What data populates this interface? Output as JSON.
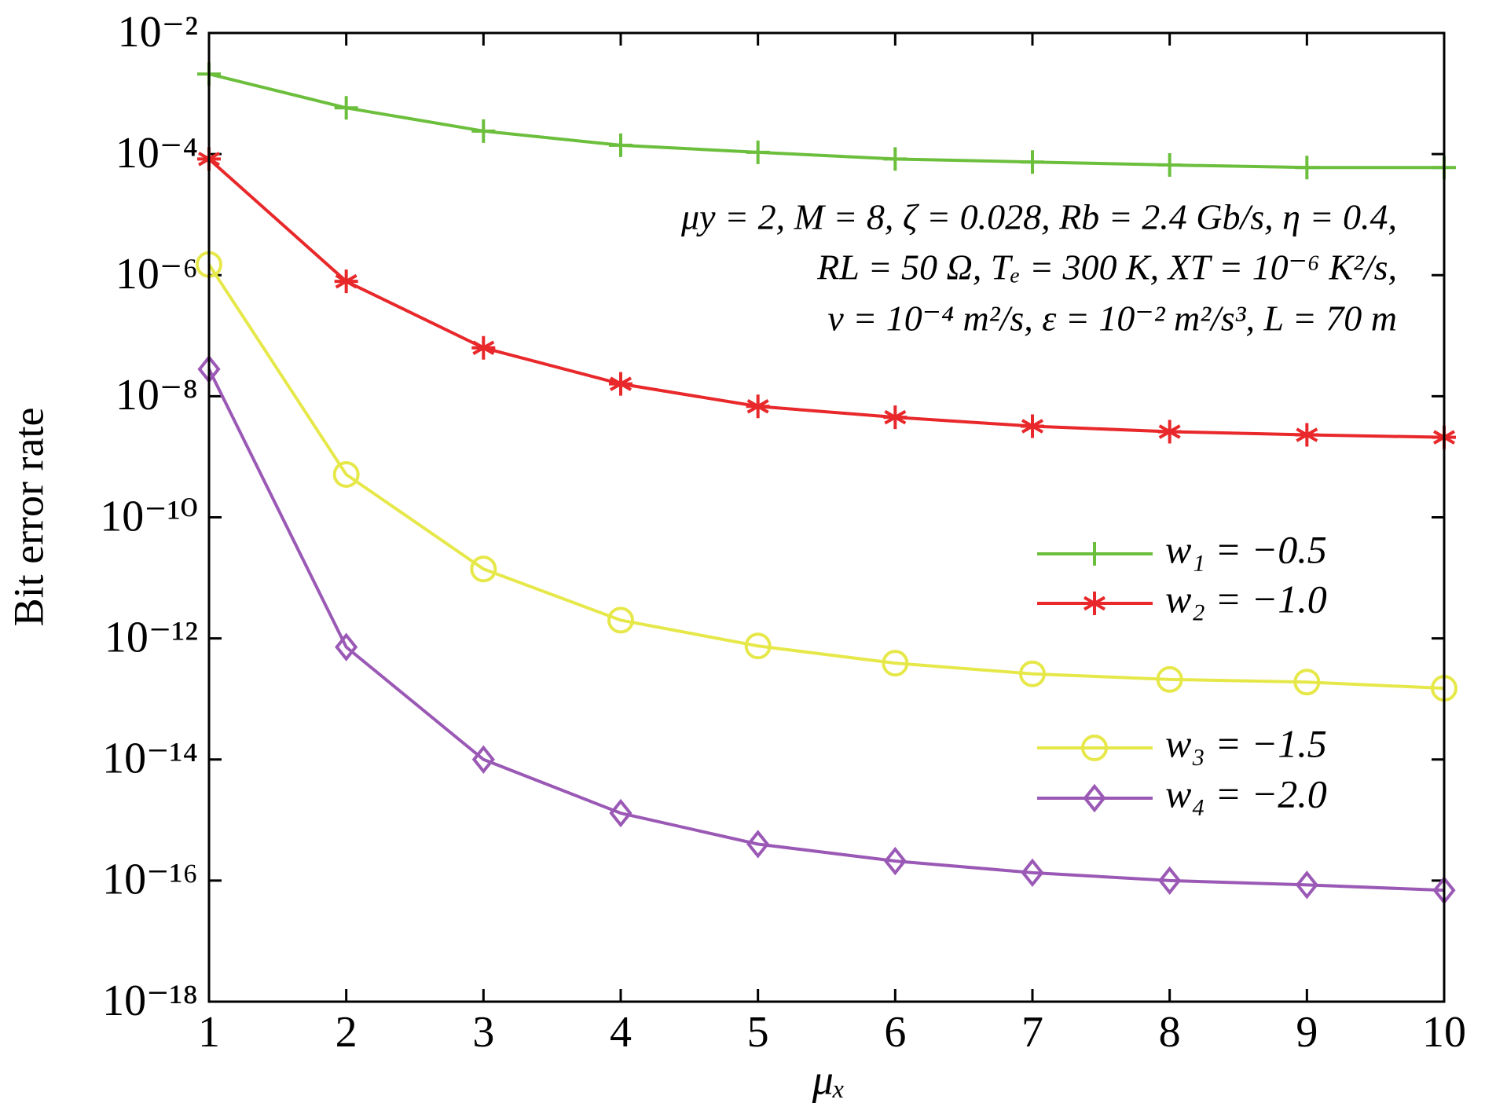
{
  "chart_data": {
    "type": "line",
    "x_label": "μₓ",
    "y_label": "Bit error rate",
    "annotations": [
      "μy = 2, M = 8, ζ = 0.028, Rb = 2.4 Gb/s, η = 0.4,",
      "RL = 50 Ω, Tₑ = 300 K, XT = 10⁻⁶ K²/s,",
      "v = 10⁻⁴ m²/s, ε = 10⁻² m²/s³,  L = 70 m"
    ],
    "x": [
      1,
      2,
      3,
      4,
      5,
      6,
      7,
      8,
      9,
      10
    ],
    "series": [
      {
        "name": "w₁ = −0.5",
        "color": "#6cbf3c",
        "marker": "plus",
        "values": [
          0.0021,
          0.00058,
          0.00024,
          0.00014,
          0.000107,
          8.3e-05,
          7.4e-05,
          6.6e-05,
          6e-05,
          6e-05
        ]
      },
      {
        "name": "w₂ = −1.0",
        "color": "#e8282a",
        "marker": "star",
        "values": [
          8.3e-05,
          7.9e-07,
          6.3e-08,
          1.6e-08,
          6.8e-09,
          4.5e-09,
          3.2e-09,
          2.6e-09,
          2.3e-09,
          2.1e-09
        ]
      },
      {
        "name": "w₃ = −1.5",
        "color": "#e6e84a",
        "marker": "circle",
        "values": [
          1.5e-06,
          5.1e-10,
          1.4e-11,
          2e-12,
          7.5e-13,
          3.9e-13,
          2.6e-13,
          2.1e-13,
          1.9e-13,
          1.5e-13
        ]
      },
      {
        "name": "w₄ = −2.0",
        "color": "#9b59b6",
        "marker": "diamond",
        "values": [
          2.8e-08,
          7.2e-13,
          1e-14,
          1.3e-15,
          4e-16,
          2.1e-16,
          1.35e-16,
          1e-16,
          8.5e-17,
          6.9e-17
        ]
      }
    ],
    "xlim": [
      1,
      10
    ],
    "xticks": [
      1,
      2,
      3,
      4,
      5,
      6,
      7,
      8,
      9,
      10
    ],
    "ylim": [
      1e-18,
      0.01
    ],
    "log_y": true,
    "yticks": [
      {
        "value": 1e-18,
        "label": "10⁻¹⁸"
      },
      {
        "value": 1e-16,
        "label": "10⁻¹⁶"
      },
      {
        "value": 1e-14,
        "label": "10⁻¹⁴"
      },
      {
        "value": 1e-12,
        "label": "10⁻¹²"
      },
      {
        "value": 1e-10,
        "label": "10⁻¹⁰"
      },
      {
        "value": 1e-08,
        "label": "10⁻⁸"
      },
      {
        "value": 1e-06,
        "label": "10⁻⁶"
      },
      {
        "value": 0.0001,
        "label": "10⁻⁴"
      },
      {
        "value": 0.01,
        "label": "10⁻²"
      }
    ]
  }
}
